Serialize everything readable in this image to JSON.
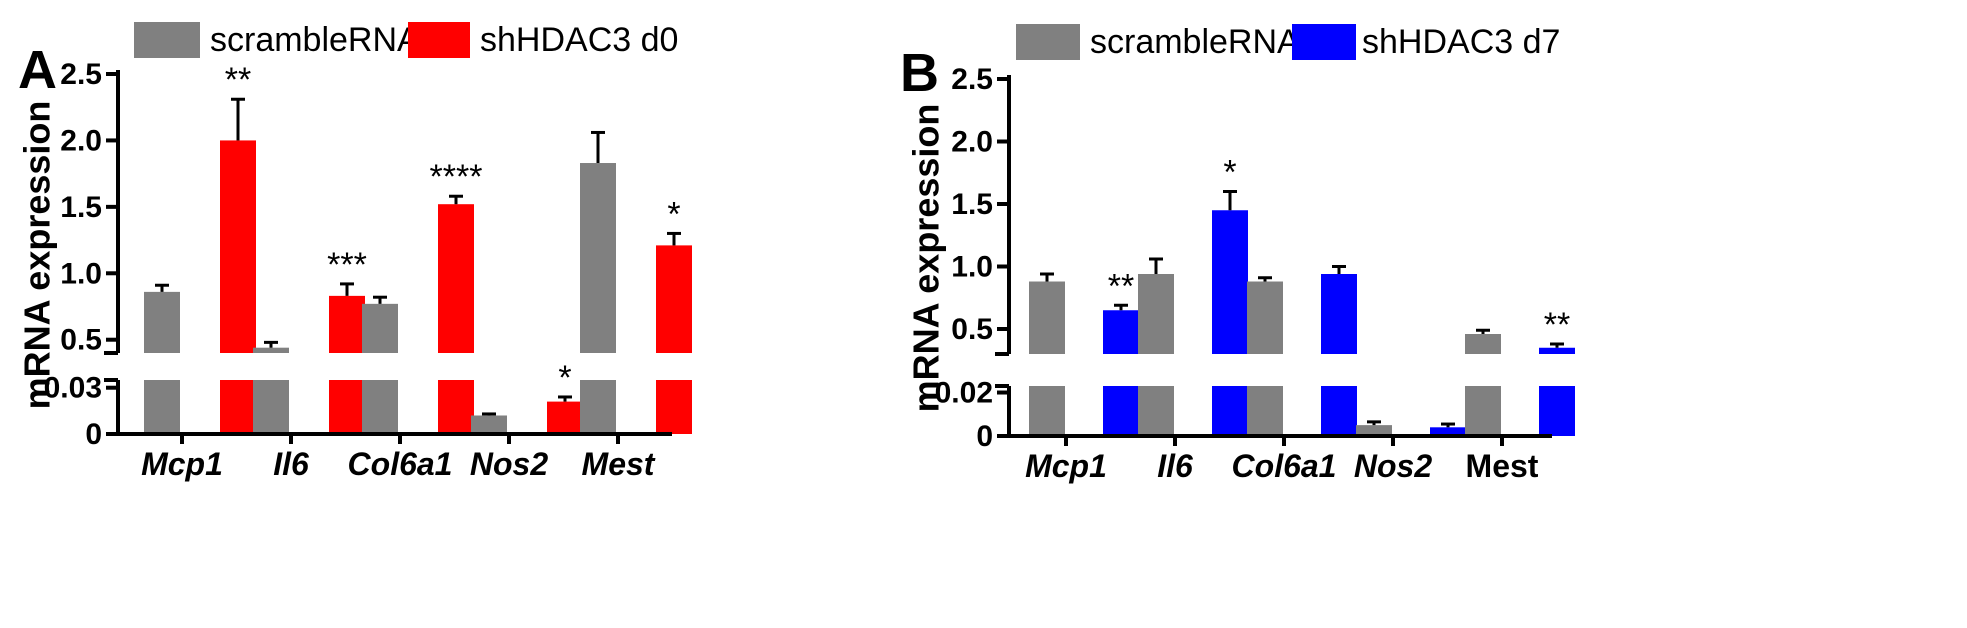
{
  "chart_data": [
    {
      "panel": "A",
      "type": "bar",
      "ylabel": "mRNA expression",
      "xlabel": "",
      "broken_axis": true,
      "ylim_upper": [
        0.4,
        2.5
      ],
      "ylim_lower": [
        0,
        0.035
      ],
      "yticks_upper": [
        "0.5",
        "1.0",
        "1.5",
        "2.0",
        "2.5"
      ],
      "yticks_lower": [
        "0",
        "0.03"
      ],
      "categories": [
        "Mcp1",
        "Il6",
        "Col6a1",
        "Nos2",
        "Mest"
      ],
      "category_italic": [
        true,
        true,
        true,
        true,
        true
      ],
      "series": [
        {
          "name": "scrambleRNA",
          "color": "#808080",
          "values": [
            0.86,
            0.44,
            0.77,
            0.012,
            1.83
          ],
          "errors": [
            0.05,
            0.04,
            0.05,
            0.001,
            0.23
          ]
        },
        {
          "name": "shHDAC3 d0",
          "color": "#ff0000",
          "values": [
            2.0,
            0.83,
            1.52,
            0.021,
            1.21
          ],
          "errors": [
            0.31,
            0.09,
            0.06,
            0.003,
            0.09
          ]
        }
      ],
      "significance": [
        {
          "category": "Mcp1",
          "series": 1,
          "label": "**"
        },
        {
          "category": "Il6",
          "series": 1,
          "label": "***"
        },
        {
          "category": "Col6a1",
          "series": 1,
          "label": "****"
        },
        {
          "category": "Nos2",
          "series": 1,
          "label": "*"
        },
        {
          "category": "Mest",
          "series": 1,
          "label": "*"
        }
      ],
      "legend": [
        "scrambleRNA",
        "shHDAC3 d0"
      ],
      "legend_position": "top"
    },
    {
      "panel": "B",
      "type": "bar",
      "ylabel": "mRNA expression",
      "xlabel": "",
      "broken_axis": true,
      "ylim_upper": [
        0.3,
        2.5
      ],
      "ylim_lower": [
        0,
        0.023
      ],
      "yticks_upper": [
        "0.5",
        "1.0",
        "1.5",
        "2.0",
        "2.5"
      ],
      "yticks_lower": [
        "0",
        "0.02"
      ],
      "categories": [
        "Mcp1",
        "Il6",
        "Col6a1",
        "Nos2",
        "Mest"
      ],
      "category_italic": [
        true,
        true,
        true,
        true,
        false
      ],
      "series": [
        {
          "name": "scrambleRNA",
          "color": "#808080",
          "values": [
            0.88,
            0.94,
            0.88,
            0.005,
            0.46
          ],
          "errors": [
            0.06,
            0.12,
            0.03,
            0.0015,
            0.03
          ]
        },
        {
          "name": "shHDAC3 d7",
          "color": "#0000ff",
          "values": [
            0.65,
            1.45,
            0.94,
            0.004,
            0.35
          ],
          "errors": [
            0.04,
            0.15,
            0.06,
            0.0015,
            0.03
          ]
        }
      ],
      "significance": [
        {
          "category": "Mcp1",
          "series": 1,
          "label": "**"
        },
        {
          "category": "Il6",
          "series": 1,
          "label": "*"
        },
        {
          "category": "Mest",
          "series": 1,
          "label": "**"
        }
      ],
      "legend": [
        "scrambleRNA",
        "shHDAC3 d7"
      ],
      "legend_position": "top"
    }
  ]
}
